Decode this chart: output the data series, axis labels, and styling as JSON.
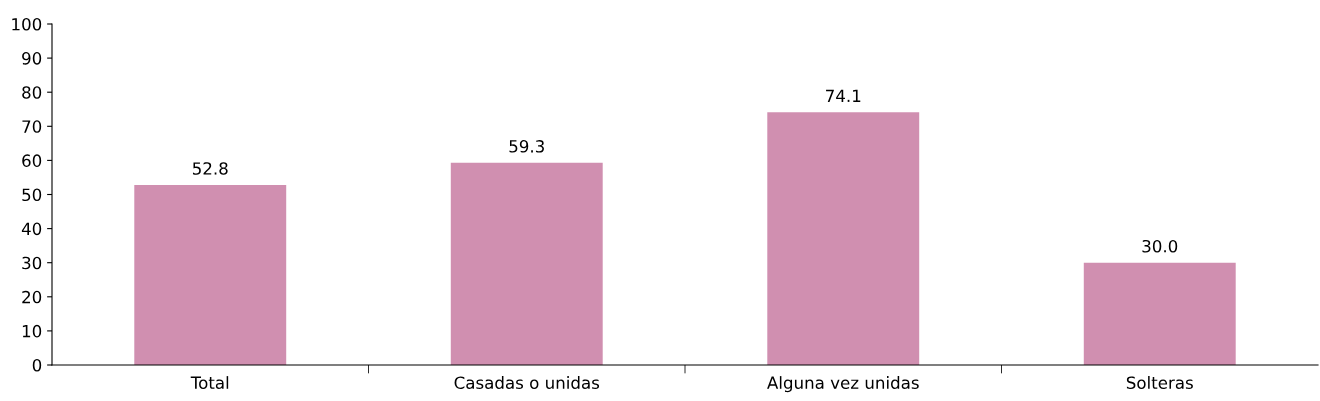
{
  "chart_data": {
    "type": "bar",
    "categories": [
      "Total",
      "Casadas o unidas",
      "Alguna vez unidas",
      "Solteras"
    ],
    "values": [
      52.8,
      59.3,
      74.1,
      30.0
    ],
    "value_labels": [
      "52.8",
      "59.3",
      "74.1",
      "30.0"
    ],
    "color": "#d08fb0",
    "ylim": [
      0,
      100
    ],
    "yticks": [
      0,
      10,
      20,
      30,
      40,
      50,
      60,
      70,
      80,
      90,
      100
    ],
    "grid": false,
    "legend": false
  }
}
